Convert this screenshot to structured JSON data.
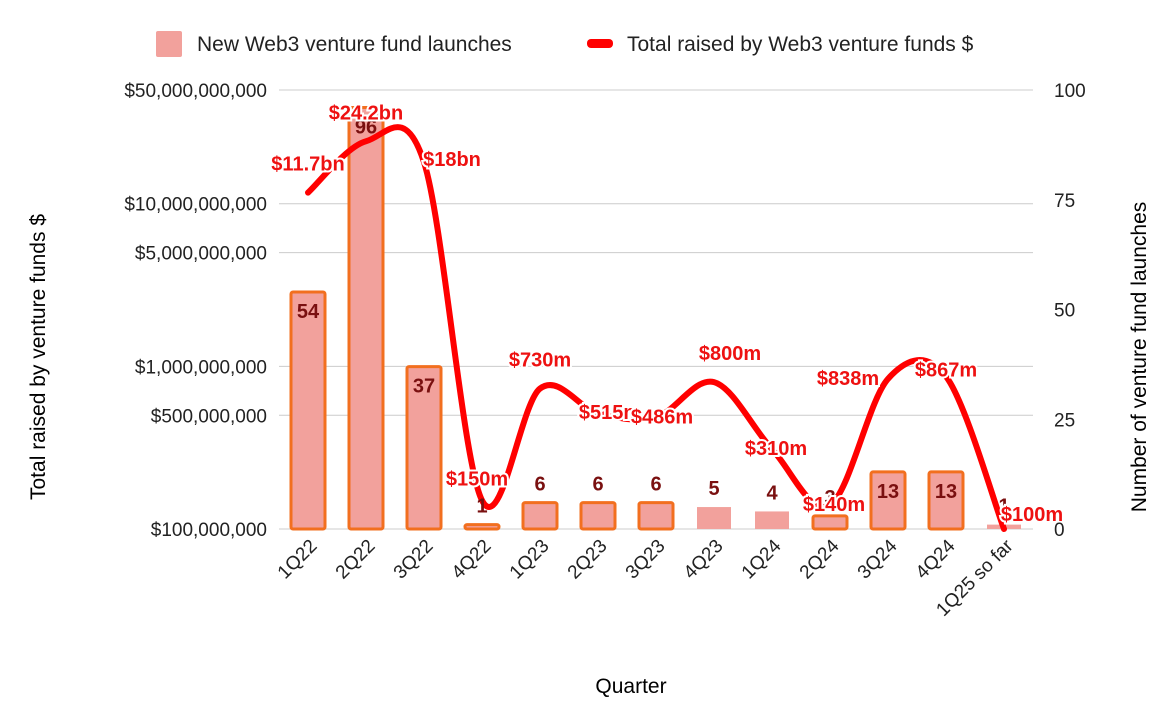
{
  "chart_data": {
    "type": "bar+line",
    "legend": {
      "bars": "New Web3 venture fund launches",
      "line": "Total raised by Web3 venture funds $",
      "position": "top"
    },
    "xlabel": "Quarter",
    "ylabel_left": "Total raised by venture funds $",
    "ylabel_right": "Number of venture fund launches",
    "categories": [
      "1Q22",
      "2Q22",
      "3Q22",
      "4Q22",
      "1Q23",
      "2Q23",
      "3Q23",
      "4Q23",
      "1Q24",
      "2Q24",
      "3Q24",
      "4Q24",
      "1Q25 so far"
    ],
    "bars": {
      "name": "New Web3 venture fund launches",
      "values": [
        54,
        96,
        37,
        1,
        6,
        6,
        6,
        5,
        4,
        3,
        13,
        13,
        1
      ],
      "highlighted": [
        true,
        true,
        true,
        true,
        true,
        true,
        true,
        false,
        false,
        true,
        true,
        true,
        false
      ]
    },
    "line": {
      "name": "Total raised by Web3 venture funds $",
      "scale": "log",
      "values": [
        11700000000,
        24200000000,
        18000000000,
        150000000,
        730000000,
        515000000,
        486000000,
        800000000,
        310000000,
        140000000,
        838000000,
        867000000,
        100000000
      ],
      "labels": [
        "$11.7bn",
        "$24.2bn",
        "$18bn",
        "$150m",
        "$730m",
        "$515m",
        "$486m",
        "$800m",
        "$310m",
        "$140m",
        "$838m",
        "$867m",
        "$100m"
      ]
    },
    "left_axis": {
      "scale": "log",
      "ylim": [
        100000000,
        50000000000
      ],
      "ticks": [
        {
          "value": 50000000000,
          "label": "$50,000,000,000"
        },
        {
          "value": 10000000000,
          "label": "$10,000,000,000"
        },
        {
          "value": 5000000000,
          "label": "$5,000,000,000"
        },
        {
          "value": 1000000000,
          "label": "$1,000,000,000"
        },
        {
          "value": 500000000,
          "label": "$500,000,000"
        },
        {
          "value": 100000000,
          "label": "$100,000,000"
        }
      ]
    },
    "right_axis": {
      "scale": "linear",
      "ylim": [
        0,
        100
      ],
      "ticks": [
        {
          "value": 100,
          "label": "100"
        },
        {
          "value": 75,
          "label": "75"
        },
        {
          "value": 50,
          "label": "50"
        },
        {
          "value": 25,
          "label": "25"
        },
        {
          "value": 0,
          "label": "0"
        }
      ]
    },
    "colors": {
      "bar_fill": "#f2a19c",
      "bar_outline": "#f26f1f",
      "line": "#ff0000",
      "label_line": "#ee1111",
      "label_bar": "#7a1010",
      "grid": "#cccccc"
    }
  }
}
